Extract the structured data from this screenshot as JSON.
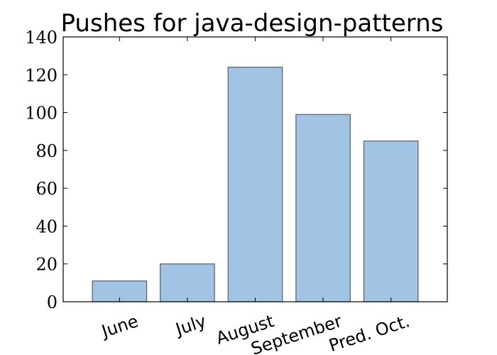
{
  "chart_data": {
    "type": "bar",
    "title": "Pushes for java-design-patterns",
    "categories": [
      "June",
      "July",
      "August",
      "September",
      "Pred. Oct."
    ],
    "values": [
      11,
      20,
      124,
      99,
      85
    ],
    "xlabel": "",
    "ylabel": "",
    "ylim": [
      0,
      140
    ],
    "yticks": [
      0,
      20,
      40,
      60,
      80,
      100,
      120,
      140
    ],
    "bar_color": "#a1c3e4",
    "bar_edge_color": "#55626d",
    "grid": false,
    "x_tick_label_rotation_deg": -18
  }
}
